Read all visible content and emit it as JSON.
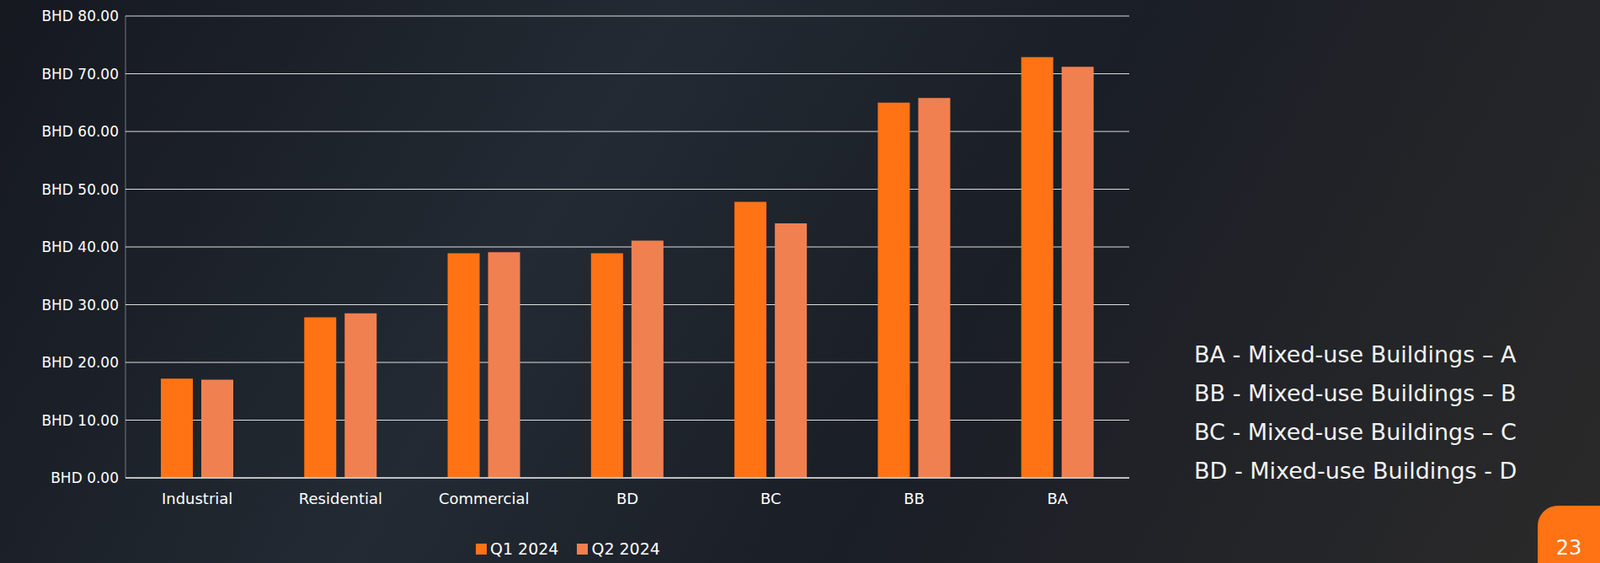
{
  "chart_data": {
    "type": "bar",
    "categories": [
      "Industrial",
      "Residential",
      "Commercial",
      "BD",
      "BC",
      "BB",
      "BA"
    ],
    "series": [
      {
        "name": "Q1 2024",
        "color": "#ff7315",
        "values": [
          17.2,
          27.8,
          38.9,
          38.9,
          47.8,
          65.0,
          72.9
        ]
      },
      {
        "name": "Q2 2024",
        "color": "#f08050",
        "values": [
          17.0,
          28.5,
          39.1,
          41.1,
          44.1,
          65.8,
          71.2
        ]
      }
    ],
    "ylim": [
      0,
      80
    ],
    "yticks": [
      {
        "value": 0,
        "label": "BHD 0.00"
      },
      {
        "value": 10,
        "label": "BHD 10.00"
      },
      {
        "value": 20,
        "label": "BHD 20.00"
      },
      {
        "value": 30,
        "label": "BHD 30.00"
      },
      {
        "value": 40,
        "label": "BHD 40.00"
      },
      {
        "value": 50,
        "label": "BHD 50.00"
      },
      {
        "value": 60,
        "label": "BHD 60.00"
      },
      {
        "value": 70,
        "label": "BHD 70.00"
      },
      {
        "value": 80,
        "label": "BHD 80.00"
      }
    ],
    "grid": true,
    "annotations": [
      "BA - Mixed-use Buildings – A",
      "BB - Mixed-use Buildings – B",
      "BC - Mixed-use Buildings – C",
      "BD - Mixed-use Buildings - D"
    ],
    "page_number": "23"
  }
}
